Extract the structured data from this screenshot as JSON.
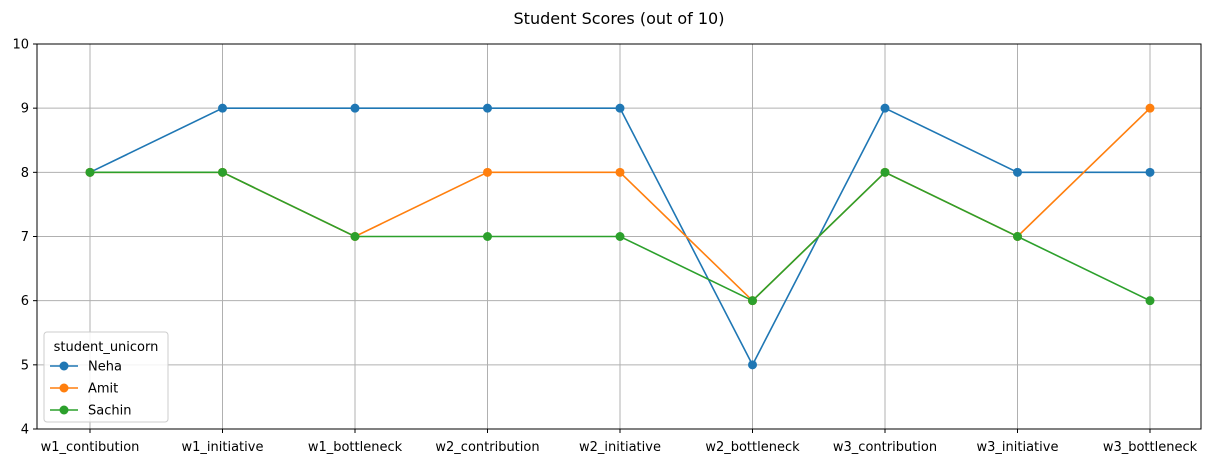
{
  "chart_data": {
    "type": "line",
    "title": "Student Scores (out of 10)",
    "xlabel": "",
    "ylabel": "",
    "categories": [
      "w1_contibution",
      "w1_initiative",
      "w1_bottleneck",
      "w2_contribution",
      "w2_initiative",
      "w2_bottleneck",
      "w3_contribution",
      "w3_initiative",
      "w3_bottleneck"
    ],
    "ylim": [
      4,
      10
    ],
    "yticks": [
      4,
      5,
      6,
      7,
      8,
      9,
      10
    ],
    "grid": true,
    "legend": {
      "title": "student_unicorn",
      "position": "lower-left"
    },
    "series": [
      {
        "name": "Neha",
        "color": "#1f77b4",
        "values": [
          8,
          9,
          9,
          9,
          9,
          5,
          9,
          8,
          8
        ]
      },
      {
        "name": "Amit",
        "color": "#ff7f0e",
        "values": [
          8,
          8,
          7,
          8,
          8,
          6,
          8,
          7,
          9
        ]
      },
      {
        "name": "Sachin",
        "color": "#2ca02c",
        "values": [
          8,
          8,
          7,
          7,
          7,
          6,
          8,
          7,
          6
        ]
      }
    ]
  }
}
